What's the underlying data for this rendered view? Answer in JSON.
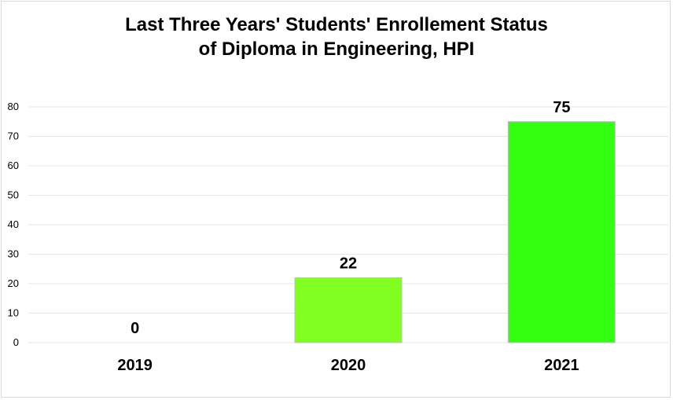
{
  "chart_data": {
    "type": "bar",
    "title_lines": [
      "Last Three Years' Students' Enrollement Status",
      "of Diploma in Engineering, HPI"
    ],
    "categories": [
      "2019",
      "2020",
      "2021"
    ],
    "values": [
      0,
      22,
      75
    ],
    "data_labels": [
      "0",
      "22",
      "75"
    ],
    "bar_colors": [
      "#80ff20",
      "#80ff20",
      "#33ff11"
    ],
    "ylim": [
      0,
      80
    ],
    "yticks": [
      "0",
      "10",
      "20",
      "30",
      "40",
      "50",
      "60",
      "70",
      "80"
    ],
    "grid": true,
    "legend": "none",
    "xlabel": "",
    "ylabel": ""
  }
}
